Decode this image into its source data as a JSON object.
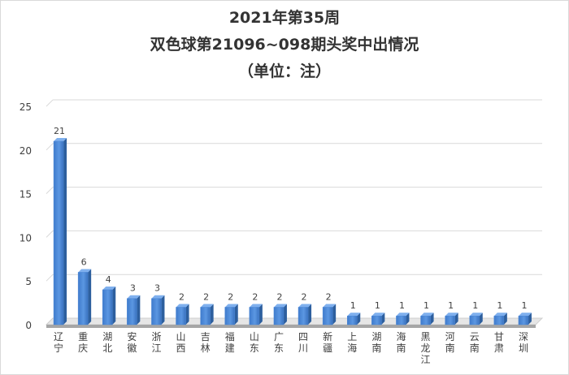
{
  "chart_data": {
    "type": "bar",
    "title": [
      "2021年第35周",
      "双色球第21096~098期头奖中出情况",
      "（单位：注）"
    ],
    "categories": [
      "辽宁",
      "重庆",
      "湖北",
      "安徽",
      "浙江",
      "山西",
      "吉林",
      "福建",
      "山东",
      "广东",
      "四川",
      "新疆",
      "上海",
      "湖南",
      "海南",
      "黑龙江",
      "河南",
      "云南",
      "甘肃",
      "深圳"
    ],
    "values": [
      21,
      6,
      4,
      3,
      3,
      2,
      2,
      2,
      2,
      2,
      2,
      2,
      1,
      1,
      1,
      1,
      1,
      1,
      1,
      1
    ],
    "ylim": [
      0,
      25
    ],
    "yticks": [
      0,
      5,
      10,
      15,
      20,
      25
    ],
    "grid": true,
    "legend": "none",
    "bar_color": "#4a86d4"
  }
}
